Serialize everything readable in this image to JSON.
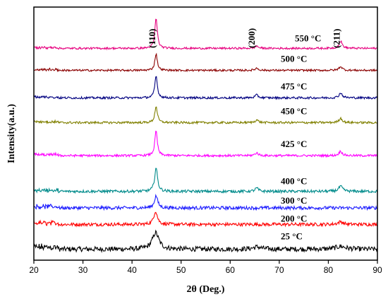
{
  "chart_data": {
    "type": "line",
    "xlabel": "2θ (Deg.)",
    "ylabel": "Intensity(a.u.)",
    "xlim": [
      20,
      90
    ],
    "x_ticks": [
      20,
      30,
      40,
      50,
      60,
      70,
      80,
      90
    ],
    "y_ticks_shown": false,
    "grid": false,
    "peak_annotations": [
      {
        "label": "(110)",
        "x": 44.7
      },
      {
        "label": "(200)",
        "x": 65.0
      },
      {
        "label": "(211)",
        "x": 82.3
      }
    ],
    "series": [
      {
        "name": "25 °C",
        "color": "#000000",
        "baseline": 0.0,
        "noise": 0.9,
        "peaks": [
          {
            "x": 44.8,
            "height": 3.0,
            "width": 0.8
          },
          {
            "x": 65.5,
            "height": 0.4,
            "width": 1.0
          },
          {
            "x": 82.5,
            "height": 0.5,
            "width": 1.2
          }
        ]
      },
      {
        "name": "200 °C",
        "color": "#ff0000",
        "baseline": 4.5,
        "noise": 0.6,
        "peaks": [
          {
            "x": 44.8,
            "height": 2.4,
            "width": 0.45
          },
          {
            "x": 82.5,
            "height": 0.5,
            "width": 0.6
          }
        ]
      },
      {
        "name": "300 °C",
        "color": "#1a1aff",
        "baseline": 7.5,
        "noise": 0.6,
        "peaks": [
          {
            "x": 44.9,
            "height": 2.2,
            "width": 0.4
          }
        ]
      },
      {
        "name": "400 °C",
        "color": "#008b8b",
        "baseline": 10.5,
        "noise": 0.5,
        "peaks": [
          {
            "x": 44.9,
            "height": 4.3,
            "width": 0.35
          },
          {
            "x": 65.4,
            "height": 0.6,
            "width": 0.4
          },
          {
            "x": 82.5,
            "height": 0.9,
            "width": 0.5
          }
        ]
      },
      {
        "name": "425 °C",
        "color": "#ff00ff",
        "baseline": 17.0,
        "noise": 0.4,
        "peaks": [
          {
            "x": 44.9,
            "height": 4.5,
            "width": 0.3
          },
          {
            "x": 65.4,
            "height": 0.5,
            "width": 0.4
          },
          {
            "x": 82.5,
            "height": 0.8,
            "width": 0.4
          }
        ]
      },
      {
        "name": "450 °C",
        "color": "#808000",
        "baseline": 23.0,
        "noise": 0.4,
        "peaks": [
          {
            "x": 44.9,
            "height": 3.0,
            "width": 0.3
          },
          {
            "x": 65.4,
            "height": 0.5,
            "width": 0.4
          },
          {
            "x": 82.5,
            "height": 0.8,
            "width": 0.4
          }
        ]
      },
      {
        "name": "475 °C",
        "color": "#000080",
        "baseline": 27.5,
        "noise": 0.4,
        "peaks": [
          {
            "x": 44.9,
            "height": 4.0,
            "width": 0.3
          },
          {
            "x": 65.4,
            "height": 0.5,
            "width": 0.4
          },
          {
            "x": 82.5,
            "height": 0.9,
            "width": 0.4
          }
        ]
      },
      {
        "name": "500 °C",
        "color": "#8b0000",
        "baseline": 32.5,
        "noise": 0.35,
        "peaks": [
          {
            "x": 44.9,
            "height": 3.0,
            "width": 0.3
          },
          {
            "x": 65.4,
            "height": 0.4,
            "width": 0.4
          },
          {
            "x": 82.5,
            "height": 0.7,
            "width": 0.4
          }
        ]
      },
      {
        "name": "550 °C",
        "color": "#e6007e",
        "baseline": 36.5,
        "noise": 0.35,
        "peaks": [
          {
            "x": 44.9,
            "height": 5.5,
            "width": 0.3
          },
          {
            "x": 65.4,
            "height": 0.4,
            "width": 0.4
          },
          {
            "x": 82.5,
            "height": 1.3,
            "width": 0.4
          }
        ]
      }
    ]
  }
}
